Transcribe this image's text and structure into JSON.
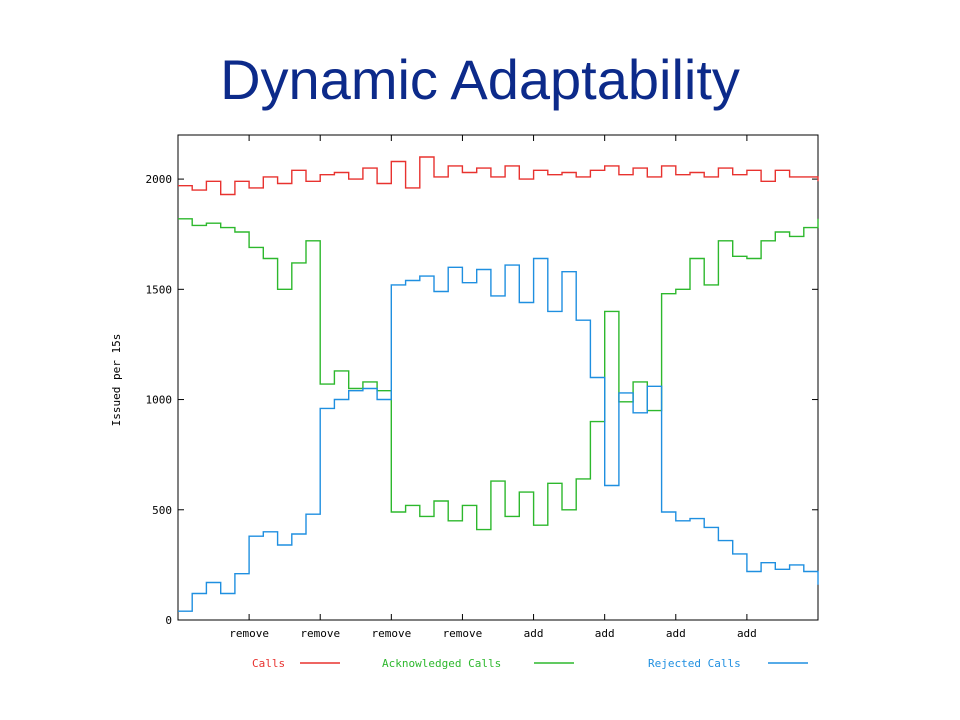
{
  "slide": {
    "title": "Dynamic Adaptability"
  },
  "chart_data": {
    "type": "line",
    "title": "Dynamic Adaptability",
    "ylabel": "Issued per 15s",
    "xlabel": "",
    "ylim": [
      0,
      2200
    ],
    "yticks": [
      0,
      500,
      1000,
      1500,
      2000
    ],
    "x_event_labels": [
      "remove",
      "remove",
      "remove",
      "remove",
      "add",
      "add",
      "add",
      "add"
    ],
    "x_event_positions": [
      5,
      10,
      15,
      20,
      25,
      30,
      35,
      40
    ],
    "xlim": [
      0,
      45
    ],
    "grid": false,
    "legend": {
      "placement": "bottom"
    },
    "series": [
      {
        "name": "Calls",
        "color": "#e8322f",
        "x": [
          0,
          1,
          2,
          3,
          4,
          5,
          6,
          7,
          8,
          9,
          10,
          11,
          12,
          13,
          14,
          15,
          16,
          17,
          18,
          19,
          20,
          21,
          22,
          23,
          24,
          25,
          26,
          27,
          28,
          29,
          30,
          31,
          32,
          33,
          34,
          35,
          36,
          37,
          38,
          39,
          40,
          41,
          42,
          43,
          44,
          45
        ],
        "y": [
          1970,
          1950,
          1990,
          1930,
          1990,
          1960,
          2010,
          1980,
          2040,
          1990,
          2020,
          2030,
          2000,
          2050,
          1980,
          2080,
          1960,
          2100,
          2010,
          2060,
          2030,
          2050,
          2010,
          2060,
          2000,
          2040,
          2020,
          2030,
          2010,
          2040,
          2060,
          2020,
          2050,
          2010,
          2060,
          2020,
          2030,
          2010,
          2050,
          2020,
          2040,
          1990,
          2040,
          2010,
          2010,
          1990
        ]
      },
      {
        "name": "Acknowledged Calls",
        "color": "#2db82d",
        "x": [
          0,
          1,
          2,
          3,
          4,
          5,
          6,
          7,
          8,
          9,
          10,
          11,
          12,
          13,
          14,
          15,
          16,
          17,
          18,
          19,
          20,
          21,
          22,
          23,
          24,
          25,
          26,
          27,
          28,
          29,
          30,
          31,
          32,
          33,
          34,
          35,
          36,
          37,
          38,
          39,
          40,
          41,
          42,
          43,
          44,
          45
        ],
        "y": [
          1820,
          1790,
          1800,
          1780,
          1760,
          1690,
          1640,
          1500,
          1620,
          1720,
          1070,
          1130,
          1050,
          1080,
          1040,
          490,
          520,
          470,
          540,
          450,
          520,
          410,
          630,
          470,
          580,
          430,
          620,
          500,
          640,
          900,
          1400,
          990,
          1080,
          950,
          1480,
          1500,
          1640,
          1520,
          1720,
          1650,
          1640,
          1720,
          1760,
          1740,
          1780,
          1820
        ]
      },
      {
        "name": "Rejected Calls",
        "color": "#1f8fe0",
        "x": [
          0,
          1,
          2,
          3,
          4,
          5,
          6,
          7,
          8,
          9,
          10,
          11,
          12,
          13,
          14,
          15,
          16,
          17,
          18,
          19,
          20,
          21,
          22,
          23,
          24,
          25,
          26,
          27,
          28,
          29,
          30,
          31,
          32,
          33,
          34,
          35,
          36,
          37,
          38,
          39,
          40,
          41,
          42,
          43,
          44,
          45
        ],
        "y": [
          40,
          120,
          170,
          120,
          210,
          380,
          400,
          340,
          390,
          480,
          960,
          1000,
          1040,
          1050,
          1000,
          1520,
          1540,
          1560,
          1490,
          1600,
          1530,
          1590,
          1470,
          1610,
          1440,
          1640,
          1400,
          1580,
          1360,
          1100,
          610,
          1030,
          940,
          1060,
          490,
          450,
          460,
          420,
          360,
          300,
          220,
          260,
          230,
          250,
          220,
          160
        ]
      }
    ]
  }
}
